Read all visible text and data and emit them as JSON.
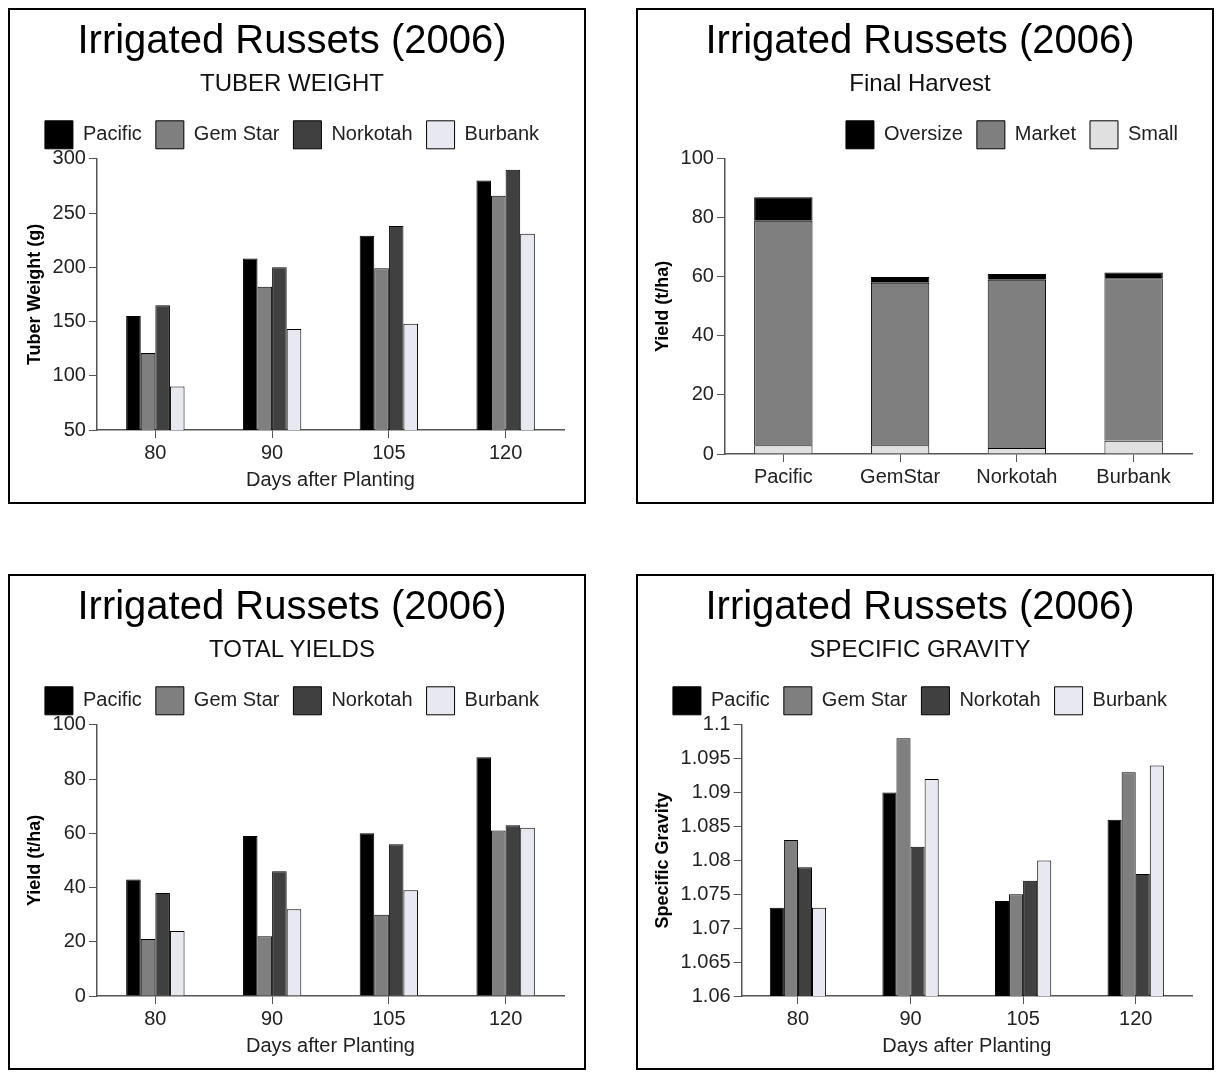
{
  "chart_data": [
    {
      "type": "bar",
      "title": "Irrigated Russets (2006)",
      "subtitle": "TUBER WEIGHT",
      "xlabel": "Days after Planting",
      "ylabel": "Tuber Weight (g)",
      "categories": [
        "80",
        "90",
        "105",
        "120"
      ],
      "ylim": [
        50,
        300
      ],
      "yticks": [
        50,
        100,
        150,
        200,
        250,
        300
      ],
      "legend": "top",
      "series": [
        {
          "name": "Pacific",
          "color": "#000000",
          "values": [
            155,
            208,
            229,
            280
          ]
        },
        {
          "name": "Gem Star",
          "color": "#7f7f7f",
          "values": [
            121,
            182,
            199,
            266
          ]
        },
        {
          "name": "Norkotah",
          "color": "#404040",
          "values": [
            165,
            200,
            238,
            290
          ]
        },
        {
          "name": "Burbank",
          "color": "#e8e8f0",
          "values": [
            90,
            143,
            148,
            231
          ]
        }
      ]
    },
    {
      "type": "bar",
      "title": "Irrigated Russets (2006)",
      "subtitle": "Final Harvest",
      "ylabel": "Yield (t/ha)",
      "categories": [
        "Pacific",
        "GemStar",
        "Norkotah",
        "Burbank"
      ],
      "ylim": [
        0,
        100
      ],
      "yticks": [
        0,
        20,
        40,
        60,
        80,
        100
      ],
      "stacked": true,
      "legend": "top right",
      "series": [
        {
          "name": "Small",
          "color": "#e0e0e0",
          "values": [
            3,
            3,
            2,
            4.5
          ]
        },
        {
          "name": "Market",
          "color": "#7f7f7f",
          "values": [
            76,
            55,
            57,
            55
          ]
        },
        {
          "name": "Oversize",
          "color": "#000000",
          "values": [
            8,
            2,
            2,
            2
          ]
        }
      ]
    },
    {
      "type": "bar",
      "title": "Irrigated Russets (2006)",
      "subtitle": "TOTAL YIELDS",
      "xlabel": "Days after Planting",
      "ylabel": "Yield (t/ha)",
      "categories": [
        "80",
        "90",
        "105",
        "120"
      ],
      "ylim": [
        0,
        100
      ],
      "yticks": [
        0,
        20,
        40,
        60,
        80,
        100
      ],
      "legend": "top",
      "series": [
        {
          "name": "Pacific",
          "color": "#000000",
          "values": [
            43,
            59,
            60,
            88
          ]
        },
        {
          "name": "Gem Star",
          "color": "#7f7f7f",
          "values": [
            21,
            22,
            30,
            61
          ]
        },
        {
          "name": "Norkotah",
          "color": "#404040",
          "values": [
            38,
            46,
            56,
            63
          ]
        },
        {
          "name": "Burbank",
          "color": "#e8e8f0",
          "values": [
            24,
            32,
            39,
            62
          ]
        }
      ]
    },
    {
      "type": "bar",
      "title": "Irrigated Russets (2006)",
      "subtitle": "SPECIFIC GRAVITY",
      "xlabel": "Days after Planting",
      "ylabel": "Specific Gravity",
      "categories": [
        "80",
        "90",
        "105",
        "120"
      ],
      "ylim": [
        1.06,
        1.1
      ],
      "yticks": [
        1.06,
        1.065,
        1.07,
        1.075,
        1.08,
        1.085,
        1.09,
        1.095,
        1.1
      ],
      "legend": "top",
      "series": [
        {
          "name": "Pacific",
          "color": "#000000",
          "values": [
            1.073,
            1.09,
            1.074,
            1.086
          ]
        },
        {
          "name": "Gem Star",
          "color": "#7f7f7f",
          "values": [
            1.083,
            1.098,
            1.075,
            1.093
          ]
        },
        {
          "name": "Norkotah",
          "color": "#404040",
          "values": [
            1.079,
            1.082,
            1.077,
            1.078
          ]
        },
        {
          "name": "Burbank",
          "color": "#e8e8f0",
          "values": [
            1.073,
            1.092,
            1.08,
            1.094
          ]
        }
      ]
    }
  ]
}
